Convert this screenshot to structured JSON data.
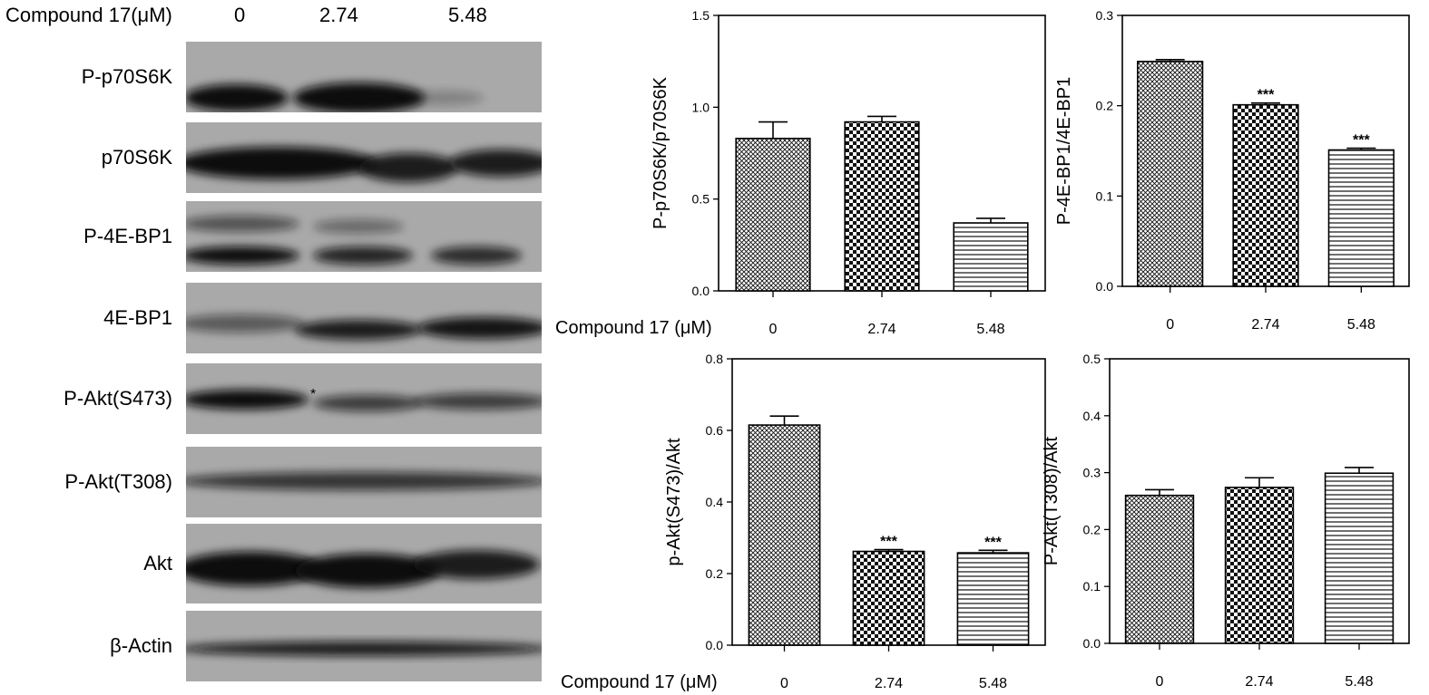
{
  "blot": {
    "header": {
      "label": "Compound 17(μM)",
      "lanes": [
        "0",
        "2.74",
        "5.48"
      ]
    },
    "rows": [
      {
        "label": "P-p70S6K"
      },
      {
        "label": "p70S6K"
      },
      {
        "label": "P-4E-BP1"
      },
      {
        "label": "4E-BP1"
      },
      {
        "label": "P-Akt(S473)",
        "marker": "*"
      },
      {
        "label": "P-Akt(T308)"
      },
      {
        "label": "Akt"
      },
      {
        "label": "β-Actin"
      }
    ]
  },
  "chart_data": [
    {
      "type": "bar",
      "ylabel": "P-p70S6K/p70S6K",
      "xlabel": "Compound 17 (μM)",
      "categories": [
        "0",
        "2.74",
        "5.48"
      ],
      "values": [
        0.83,
        0.92,
        0.37
      ],
      "errors": [
        0.09,
        0.03,
        0.025
      ],
      "annotations": [
        "",
        "",
        ""
      ],
      "ylim": [
        0,
        1.5
      ],
      "yticks": [
        "0.0",
        "0.5",
        "1.0",
        "1.5"
      ]
    },
    {
      "type": "bar",
      "ylabel": "P-4E-BP1/4E-BP1",
      "xlabel": "",
      "categories": [
        "0",
        "2.74",
        "5.48"
      ],
      "values": [
        0.249,
        0.201,
        0.151
      ],
      "errors": [
        0.002,
        0.002,
        0.002
      ],
      "annotations": [
        "",
        "***",
        "***"
      ],
      "ylim": [
        0,
        0.3
      ],
      "yticks": [
        "0.0",
        "0.1",
        "0.2",
        "0.3"
      ]
    },
    {
      "type": "bar",
      "ylabel": "p-Akt(S473)/Akt",
      "xlabel": "Compound 17 (μM)",
      "categories": [
        "0",
        "2.74",
        "5.48"
      ],
      "values": [
        0.615,
        0.262,
        0.258
      ],
      "errors": [
        0.025,
        0.005,
        0.007
      ],
      "annotations": [
        "",
        "***",
        "***"
      ],
      "ylim": [
        0,
        0.8
      ],
      "yticks": [
        "0.0",
        "0.2",
        "0.4",
        "0.6",
        "0.8"
      ]
    },
    {
      "type": "bar",
      "ylabel": "P-Akt(T308)/Akt",
      "xlabel": "",
      "categories": [
        "0",
        "2.74",
        "5.48"
      ],
      "values": [
        0.26,
        0.274,
        0.299
      ],
      "errors": [
        0.01,
        0.017,
        0.01
      ],
      "annotations": [
        "",
        "",
        ""
      ],
      "ylim": [
        0,
        0.5
      ],
      "yticks": [
        "0.0",
        "0.1",
        "0.2",
        "0.3",
        "0.4",
        "0.5"
      ]
    }
  ]
}
